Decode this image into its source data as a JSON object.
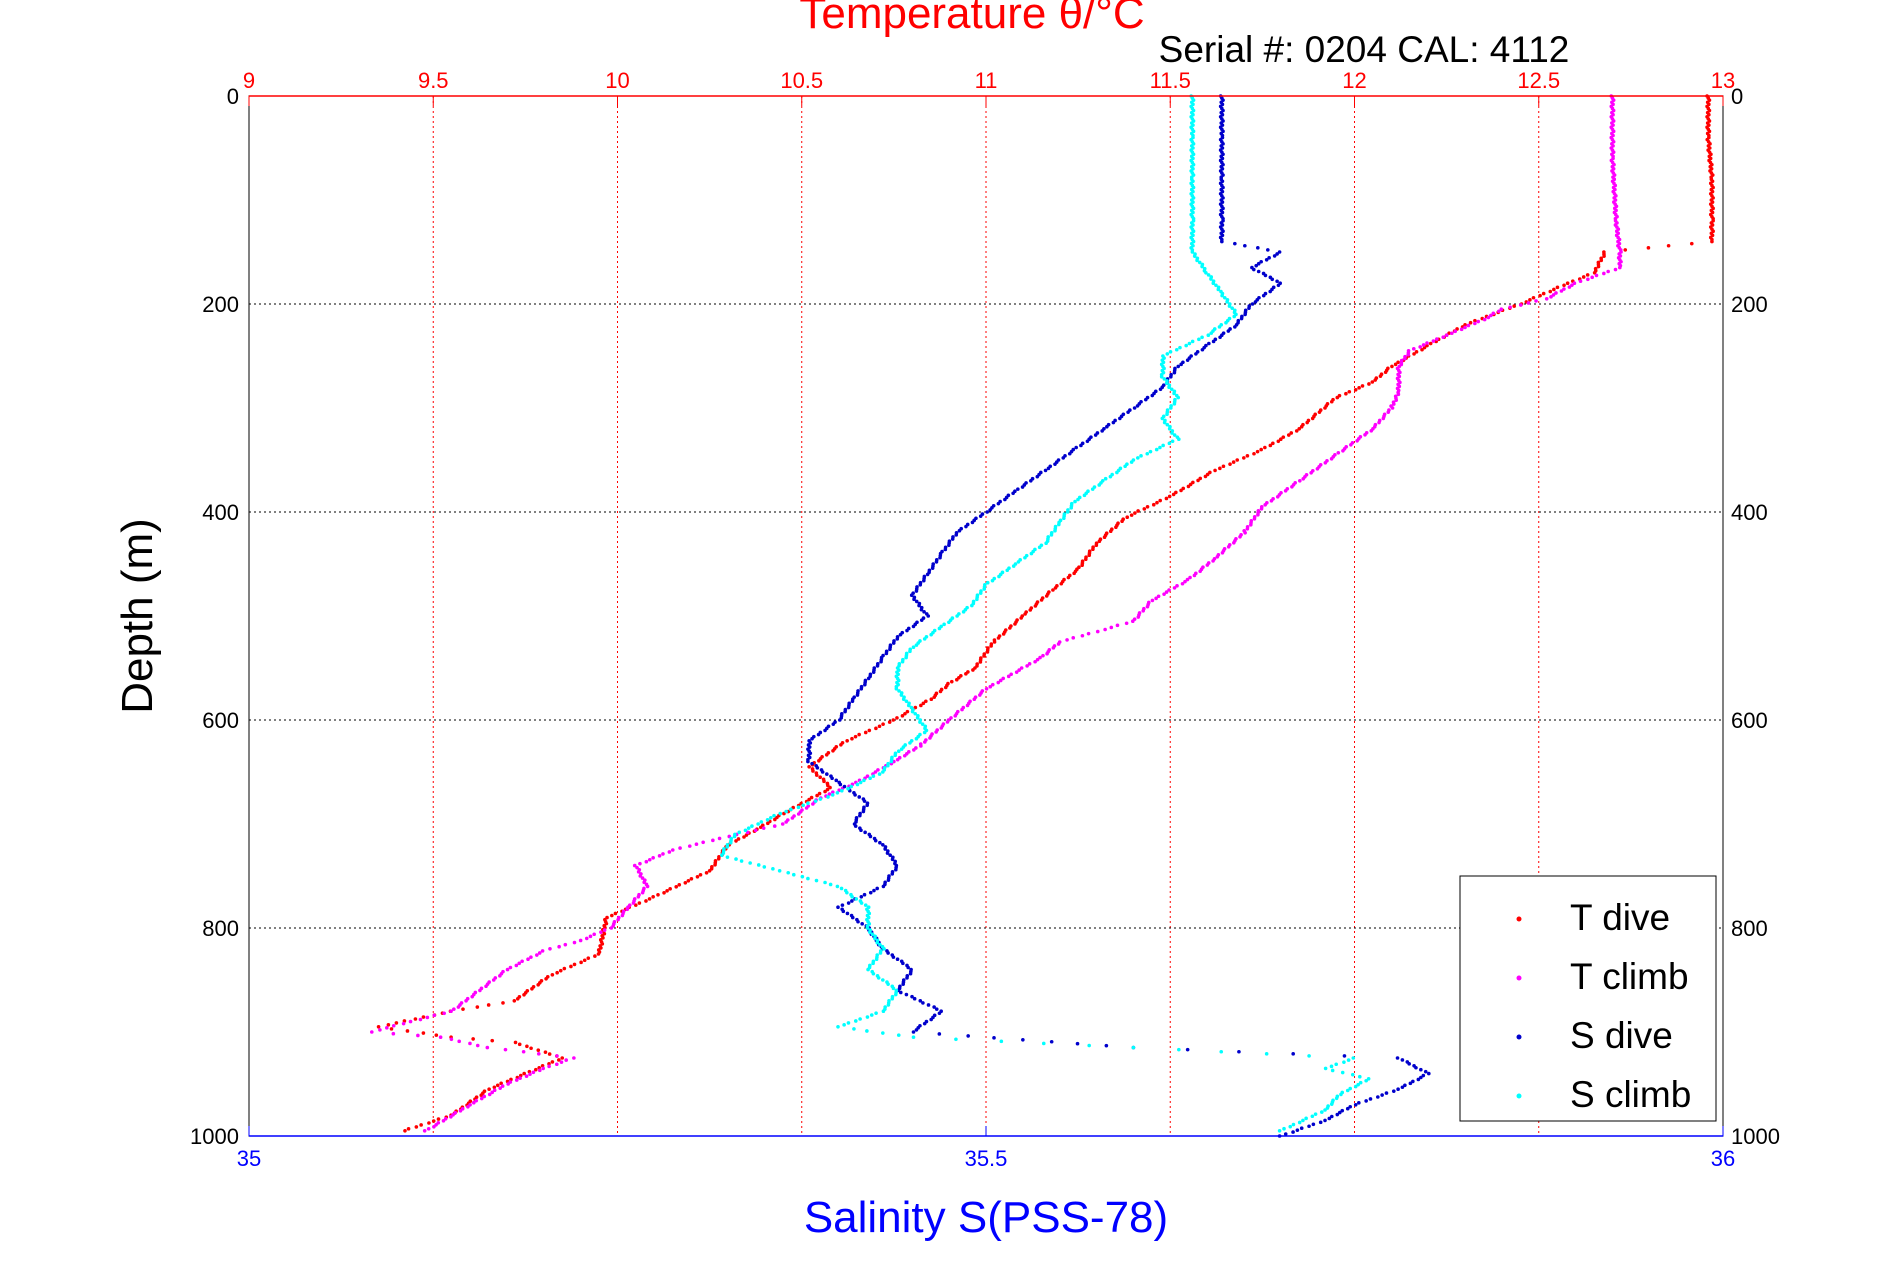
{
  "chart_data": {
    "type": "scatter",
    "title": "Temperature θ/°C",
    "subtitle": "Serial #: 0204  CAL: 4112",
    "ylabel": "Depth (m)",
    "x2label": "Salinity S(PSS-78)",
    "ylim": [
      0,
      1000
    ],
    "y_reversed": true,
    "temperature_axis": {
      "lim": [
        9,
        13
      ],
      "ticks": [
        "9",
        "9.5",
        "10",
        "10.5",
        "11",
        "11.5",
        "12",
        "12.5",
        "13"
      ]
    },
    "salinity_axis": {
      "lim": [
        35,
        36
      ],
      "ticks": [
        "35",
        "35.5",
        "36"
      ]
    },
    "depth_ticks": [
      "0",
      "200",
      "400",
      "600",
      "800",
      "1000"
    ],
    "grid": true,
    "legend": {
      "placement": "bottom-right",
      "entries": [
        "T dive",
        "T climb",
        "S dive",
        "S climb"
      ]
    },
    "colors": {
      "T dive": "#ff0000",
      "T climb": "#ff00ff",
      "S dive": "#0000cc",
      "S climb": "#00ffff",
      "temperature_axis": "#ff0000",
      "salinity_axis": "#0000ff"
    },
    "series": [
      {
        "name": "T dive",
        "axis": "temperature",
        "points": [
          [
            12.96,
            0
          ],
          [
            12.96,
            40
          ],
          [
            12.97,
            80
          ],
          [
            12.97,
            120
          ],
          [
            12.97,
            140
          ],
          [
            12.68,
            150
          ],
          [
            12.65,
            170
          ],
          [
            12.58,
            180
          ],
          [
            12.45,
            200
          ],
          [
            12.3,
            220
          ],
          [
            12.2,
            240
          ],
          [
            12.1,
            260
          ],
          [
            12.05,
            275
          ],
          [
            11.95,
            290
          ],
          [
            11.85,
            320
          ],
          [
            11.75,
            340
          ],
          [
            11.62,
            360
          ],
          [
            11.5,
            385
          ],
          [
            11.38,
            405
          ],
          [
            11.3,
            430
          ],
          [
            11.25,
            455
          ],
          [
            11.18,
            475
          ],
          [
            11.1,
            500
          ],
          [
            11.02,
            525
          ],
          [
            10.97,
            550
          ],
          [
            10.9,
            565
          ],
          [
            10.85,
            580
          ],
          [
            10.75,
            600
          ],
          [
            10.62,
            620
          ],
          [
            10.52,
            645
          ],
          [
            10.58,
            665
          ],
          [
            10.45,
            690
          ],
          [
            10.38,
            705
          ],
          [
            10.3,
            720
          ],
          [
            10.25,
            745
          ],
          [
            10.1,
            770
          ],
          [
            9.97,
            790
          ],
          [
            9.95,
            825
          ],
          [
            9.82,
            845
          ],
          [
            9.72,
            870
          ],
          [
            9.55,
            880
          ],
          [
            9.35,
            895
          ],
          [
            9.55,
            905
          ],
          [
            9.72,
            910
          ],
          [
            9.85,
            925
          ],
          [
            9.75,
            940
          ],
          [
            9.65,
            955
          ],
          [
            9.55,
            980
          ],
          [
            9.42,
            995
          ]
        ]
      },
      {
        "name": "T climb",
        "axis": "temperature",
        "points": [
          [
            12.7,
            0
          ],
          [
            12.7,
            60
          ],
          [
            12.71,
            120
          ],
          [
            12.72,
            150
          ],
          [
            12.72,
            165
          ],
          [
            12.6,
            180
          ],
          [
            12.52,
            195
          ],
          [
            12.4,
            205
          ],
          [
            12.35,
            215
          ],
          [
            12.25,
            230
          ],
          [
            12.15,
            245
          ],
          [
            12.12,
            260
          ],
          [
            12.12,
            285
          ],
          [
            12.1,
            300
          ],
          [
            12.05,
            320
          ],
          [
            11.95,
            345
          ],
          [
            11.85,
            370
          ],
          [
            11.75,
            395
          ],
          [
            11.7,
            420
          ],
          [
            11.62,
            445
          ],
          [
            11.55,
            465
          ],
          [
            11.45,
            485
          ],
          [
            11.4,
            505
          ],
          [
            11.3,
            515
          ],
          [
            11.2,
            525
          ],
          [
            11.15,
            540
          ],
          [
            11.0,
            570
          ],
          [
            10.9,
            600
          ],
          [
            10.82,
            625
          ],
          [
            10.75,
            640
          ],
          [
            10.65,
            660
          ],
          [
            10.55,
            675
          ],
          [
            10.45,
            700
          ],
          [
            10.3,
            712
          ],
          [
            10.15,
            725
          ],
          [
            10.05,
            740
          ],
          [
            10.08,
            760
          ],
          [
            10.03,
            780
          ],
          [
            9.98,
            800
          ],
          [
            9.9,
            812
          ],
          [
            9.8,
            822
          ],
          [
            9.7,
            840
          ],
          [
            9.55,
            880
          ],
          [
            9.33,
            900
          ],
          [
            9.52,
            905
          ],
          [
            9.65,
            915
          ],
          [
            9.88,
            925
          ],
          [
            9.8,
            935
          ],
          [
            9.7,
            950
          ],
          [
            9.6,
            970
          ],
          [
            9.48,
            995
          ]
        ]
      },
      {
        "name": "S dive",
        "axis": "salinity",
        "points": [
          [
            35.66,
            0
          ],
          [
            35.66,
            40
          ],
          [
            35.66,
            80
          ],
          [
            35.66,
            120
          ],
          [
            35.66,
            140
          ],
          [
            35.7,
            150
          ],
          [
            35.68,
            165
          ],
          [
            35.7,
            180
          ],
          [
            35.68,
            200
          ],
          [
            35.67,
            220
          ],
          [
            35.65,
            240
          ],
          [
            35.63,
            260
          ],
          [
            35.62,
            280
          ],
          [
            35.6,
            300
          ],
          [
            35.58,
            320
          ],
          [
            35.56,
            340
          ],
          [
            35.54,
            360
          ],
          [
            35.52,
            380
          ],
          [
            35.5,
            400
          ],
          [
            35.48,
            420
          ],
          [
            35.47,
            440
          ],
          [
            35.46,
            460
          ],
          [
            35.45,
            480
          ],
          [
            35.46,
            500
          ],
          [
            35.44,
            520
          ],
          [
            35.43,
            540
          ],
          [
            35.42,
            560
          ],
          [
            35.41,
            580
          ],
          [
            35.4,
            600
          ],
          [
            35.38,
            620
          ],
          [
            35.38,
            640
          ],
          [
            35.4,
            660
          ],
          [
            35.42,
            680
          ],
          [
            35.41,
            700
          ],
          [
            35.43,
            720
          ],
          [
            35.44,
            740
          ],
          [
            35.43,
            760
          ],
          [
            35.4,
            780
          ],
          [
            35.42,
            800
          ],
          [
            35.43,
            820
          ],
          [
            35.45,
            840
          ],
          [
            35.44,
            860
          ],
          [
            35.47,
            880
          ],
          [
            35.45,
            900
          ],
          [
            35.6,
            915
          ],
          [
            35.78,
            925
          ],
          [
            35.8,
            940
          ],
          [
            35.78,
            955
          ],
          [
            35.75,
            970
          ],
          [
            35.73,
            985
          ],
          [
            35.7,
            1000
          ]
        ]
      },
      {
        "name": "S climb",
        "axis": "salinity",
        "points": [
          [
            35.64,
            0
          ],
          [
            35.64,
            40
          ],
          [
            35.64,
            80
          ],
          [
            35.64,
            120
          ],
          [
            35.64,
            150
          ],
          [
            35.65,
            170
          ],
          [
            35.66,
            190
          ],
          [
            35.67,
            210
          ],
          [
            35.65,
            230
          ],
          [
            35.62,
            250
          ],
          [
            35.62,
            270
          ],
          [
            35.63,
            290
          ],
          [
            35.62,
            310
          ],
          [
            35.63,
            330
          ],
          [
            35.6,
            350
          ],
          [
            35.58,
            370
          ],
          [
            35.56,
            390
          ],
          [
            35.55,
            410
          ],
          [
            35.54,
            430
          ],
          [
            35.52,
            450
          ],
          [
            35.5,
            470
          ],
          [
            35.49,
            490
          ],
          [
            35.47,
            510
          ],
          [
            35.45,
            530
          ],
          [
            35.44,
            550
          ],
          [
            35.44,
            570
          ],
          [
            35.45,
            590
          ],
          [
            35.46,
            610
          ],
          [
            35.44,
            630
          ],
          [
            35.43,
            650
          ],
          [
            35.4,
            670
          ],
          [
            35.36,
            690
          ],
          [
            35.33,
            710
          ],
          [
            35.32,
            730
          ],
          [
            35.36,
            745
          ],
          [
            35.4,
            760
          ],
          [
            35.42,
            780
          ],
          [
            35.42,
            800
          ],
          [
            35.43,
            820
          ],
          [
            35.42,
            840
          ],
          [
            35.44,
            860
          ],
          [
            35.43,
            880
          ],
          [
            35.4,
            895
          ],
          [
            35.45,
            905
          ],
          [
            35.6,
            915
          ],
          [
            35.75,
            925
          ],
          [
            35.73,
            935
          ],
          [
            35.76,
            945
          ],
          [
            35.74,
            960
          ],
          [
            35.73,
            975
          ],
          [
            35.7,
            995
          ]
        ]
      }
    ]
  }
}
